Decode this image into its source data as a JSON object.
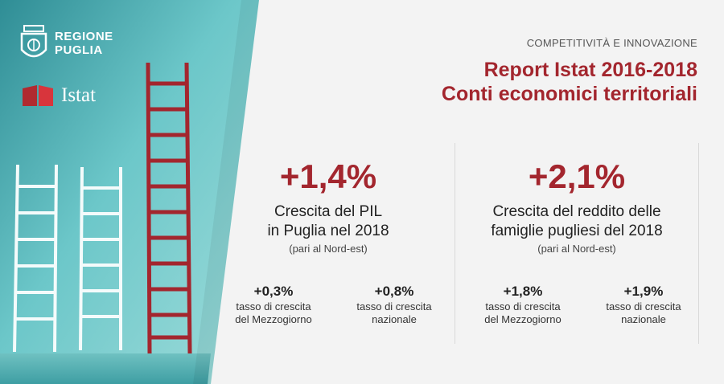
{
  "logos": {
    "regione_line1": "REGIONE",
    "regione_line2": "PUGLIA",
    "istat": "Istat"
  },
  "header": {
    "kicker": "COMPETITIVITÀ E INNOVAZIONE",
    "title_line1": "Report Istat 2016-2018",
    "title_line2": "Conti economici territoriali"
  },
  "pil": {
    "value": "+1,4%",
    "desc_line1": "Crescita del PIL",
    "desc_line2": "in Puglia nel 2018",
    "note": "(pari al Nord-est)",
    "sub": [
      {
        "value": "+0,3%",
        "label_line1": "tasso di crescita",
        "label_line2": "del Mezzogiorno"
      },
      {
        "value": "+0,8%",
        "label_line1": "tasso di crescita",
        "label_line2": "nazionale"
      }
    ]
  },
  "reddito": {
    "value": "+2,1%",
    "desc_line1": "Crescita del reddito delle",
    "desc_line2": "famiglie pugliesi del 2018",
    "note": "(pari al Nord-est)",
    "sub": [
      {
        "value": "+1,8%",
        "label_line1": "tasso di crescita",
        "label_line2": "del Mezzogiorno"
      },
      {
        "value": "+1,9%",
        "label_line1": "tasso di crescita",
        "label_line2": "nazionale"
      }
    ]
  },
  "colors": {
    "accent": "#a3262e",
    "teal": "#4fb3b8",
    "panel": "#f3f3f3"
  }
}
